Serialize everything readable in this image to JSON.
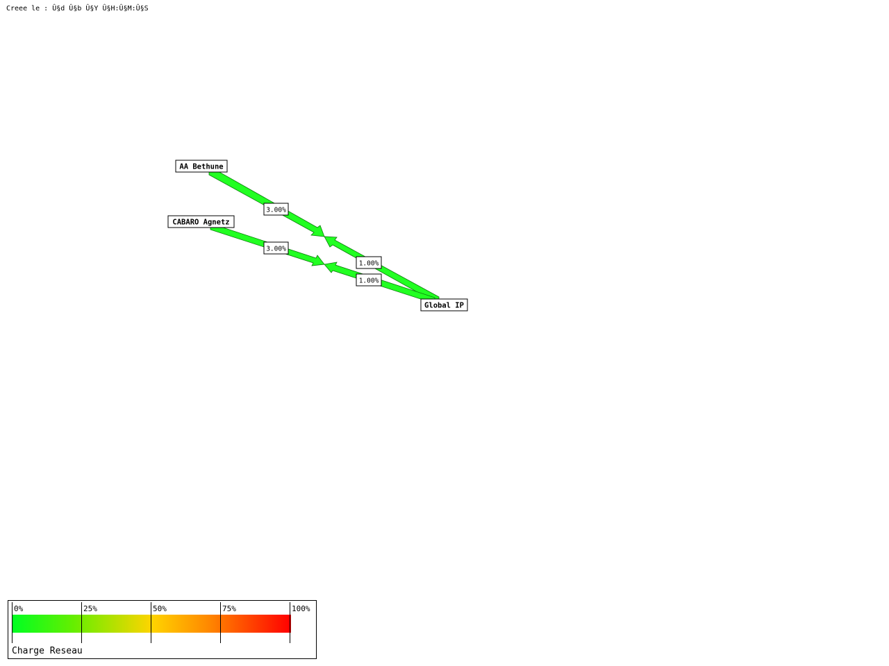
{
  "header": {
    "created_label": "Creee le : Û§d Û§b Û§Y Û§H:Û§M:Û§S"
  },
  "nodes": {
    "aa_bethune": "AA Bethune",
    "cabaro_agnetz": "CABARO Agnetz",
    "global_ip": "Global IP"
  },
  "links": {
    "aa_out": "3.00%",
    "aa_in": "1.00%",
    "cabaro_out": "3.00%",
    "cabaro_in": "1.00%"
  },
  "colors": {
    "link_fill": "#22ff22",
    "legend_start": "#00ff22",
    "legend_mid": "#ffd400",
    "legend_end": "#ff0000"
  },
  "legend": {
    "title": "Charge Reseau",
    "ticks": [
      "0%",
      "25%",
      "50%",
      "75%",
      "100%"
    ]
  }
}
